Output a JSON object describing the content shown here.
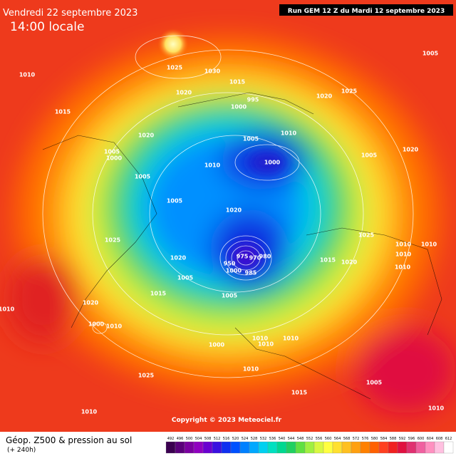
{
  "header": {
    "date": "Vendredi 22 septembre 2023",
    "time": "14:00 locale",
    "run": "Run GEM 12 Z du Mardi 12 septembre 2023"
  },
  "isobars": [
    "1005",
    "1010",
    "1025",
    "1030",
    "1015",
    "1020",
    "995",
    "1020",
    "1025",
    "1015",
    "1000",
    "1010",
    "1020",
    "1005",
    "1005",
    "1000",
    "1005",
    "1020",
    "1010",
    "1000",
    "1005",
    "1005",
    "1020",
    "1025",
    "1025",
    "1010",
    "1010",
    "975",
    "970",
    "980",
    "1015",
    "1020",
    "1010",
    "1020",
    "950",
    "1000",
    "985",
    "1005",
    "1010",
    "1015",
    "1005",
    "1020",
    "1010",
    "1000",
    "1010",
    "1010",
    "1010",
    "1010",
    "1000",
    "1010",
    "1025",
    "1005",
    "1015",
    "1010",
    "1010"
  ],
  "copyright": "Copyright © 2023 Meteociel.fr",
  "footer": {
    "title": "Géop. Z500 & pression au sol",
    "lead": "(+ 240h)"
  },
  "scale": {
    "labels": [
      492,
      496,
      500,
      504,
      508,
      512,
      516,
      520,
      524,
      528,
      532,
      536,
      540,
      544,
      548,
      552,
      556,
      560,
      564,
      568,
      572,
      576,
      580,
      584,
      588,
      592,
      596,
      600,
      604,
      608,
      612
    ],
    "colors": [
      "#3b0050",
      "#5a007a",
      "#7a00a0",
      "#9000c0",
      "#6a00d0",
      "#3a10e0",
      "#1030f0",
      "#0050ff",
      "#0080ff",
      "#00a8ff",
      "#00d0f0",
      "#00e0c0",
      "#00d890",
      "#20d060",
      "#60e040",
      "#a0f040",
      "#d8f840",
      "#ffff40",
      "#ffe030",
      "#ffc020",
      "#ffa010",
      "#ff8000",
      "#ff6000",
      "#ff4020",
      "#f02020",
      "#e01040",
      "#e03070",
      "#f060a0",
      "#ff90c0",
      "#ffc0e0",
      "#ffffff"
    ]
  }
}
